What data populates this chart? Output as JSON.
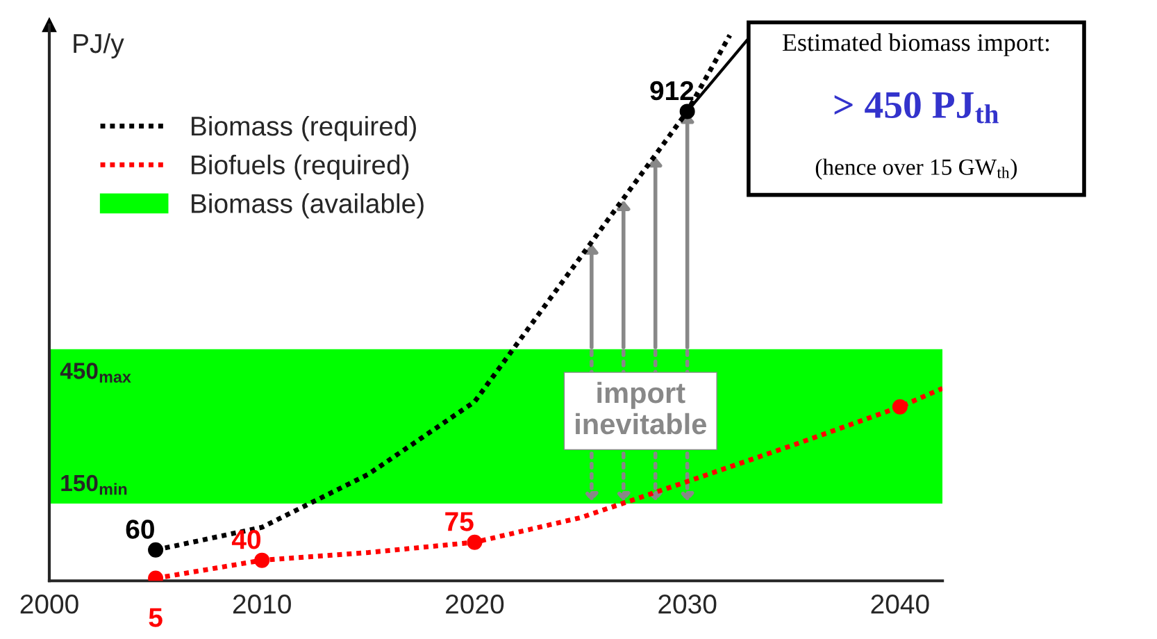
{
  "chart_data": {
    "type": "line",
    "ylabel": "PJ/y",
    "xlim": [
      2000,
      2042
    ],
    "xticks": [
      2000,
      2010,
      2020,
      2030,
      2040
    ],
    "ylim": [
      0,
      1080
    ],
    "tick_labels": "x",
    "grid": false,
    "legend": "top left",
    "series": [
      {
        "name": "Biomass (required)",
        "color": "#000000",
        "line_style": "dotted",
        "x": [
          2005,
          2010,
          2015,
          2020,
          2025,
          2030,
          2032
        ],
        "values": [
          60,
          104,
          207,
          348,
          630,
          912,
          1060
        ]
      },
      {
        "name": "Biofuels (required)",
        "color": "#ff0000",
        "line_style": "dotted",
        "x": [
          2005,
          2010,
          2015,
          2020,
          2025,
          2030,
          2035,
          2040,
          2042
        ],
        "values": [
          5,
          40,
          55,
          75,
          123,
          193,
          264,
          338,
          374
        ]
      },
      {
        "type": "scatter",
        "marker": "circle",
        "color": "#000000",
        "x": [
          2005,
          2030
        ],
        "values": [
          60,
          912
        ],
        "value_labels": [
          "60",
          "912"
        ]
      },
      {
        "type": "scatter",
        "marker": "circle",
        "color": "#ff0000",
        "x": [
          2005,
          2010,
          2020,
          2040
        ],
        "values": [
          5,
          40,
          75,
          338
        ],
        "value_labels": [
          "5",
          "40",
          "75",
          null
        ]
      }
    ],
    "bands": [
      {
        "axis": "y",
        "from": 150,
        "to": 450,
        "label": "Biomass (available)",
        "color": "#00ff00"
      }
    ],
    "annotations": [
      {
        "text": "450$_{max}$",
        "x": 2000,
        "y": 450
      },
      {
        "text": "150$_{min}$",
        "x": 2000,
        "y": 150
      },
      "import\ninevitable",
      "Estimated biomass import:",
      "> 450 PJ$_{th}$",
      "(hence over 15 GW$_{th}$)"
    ]
  }
}
